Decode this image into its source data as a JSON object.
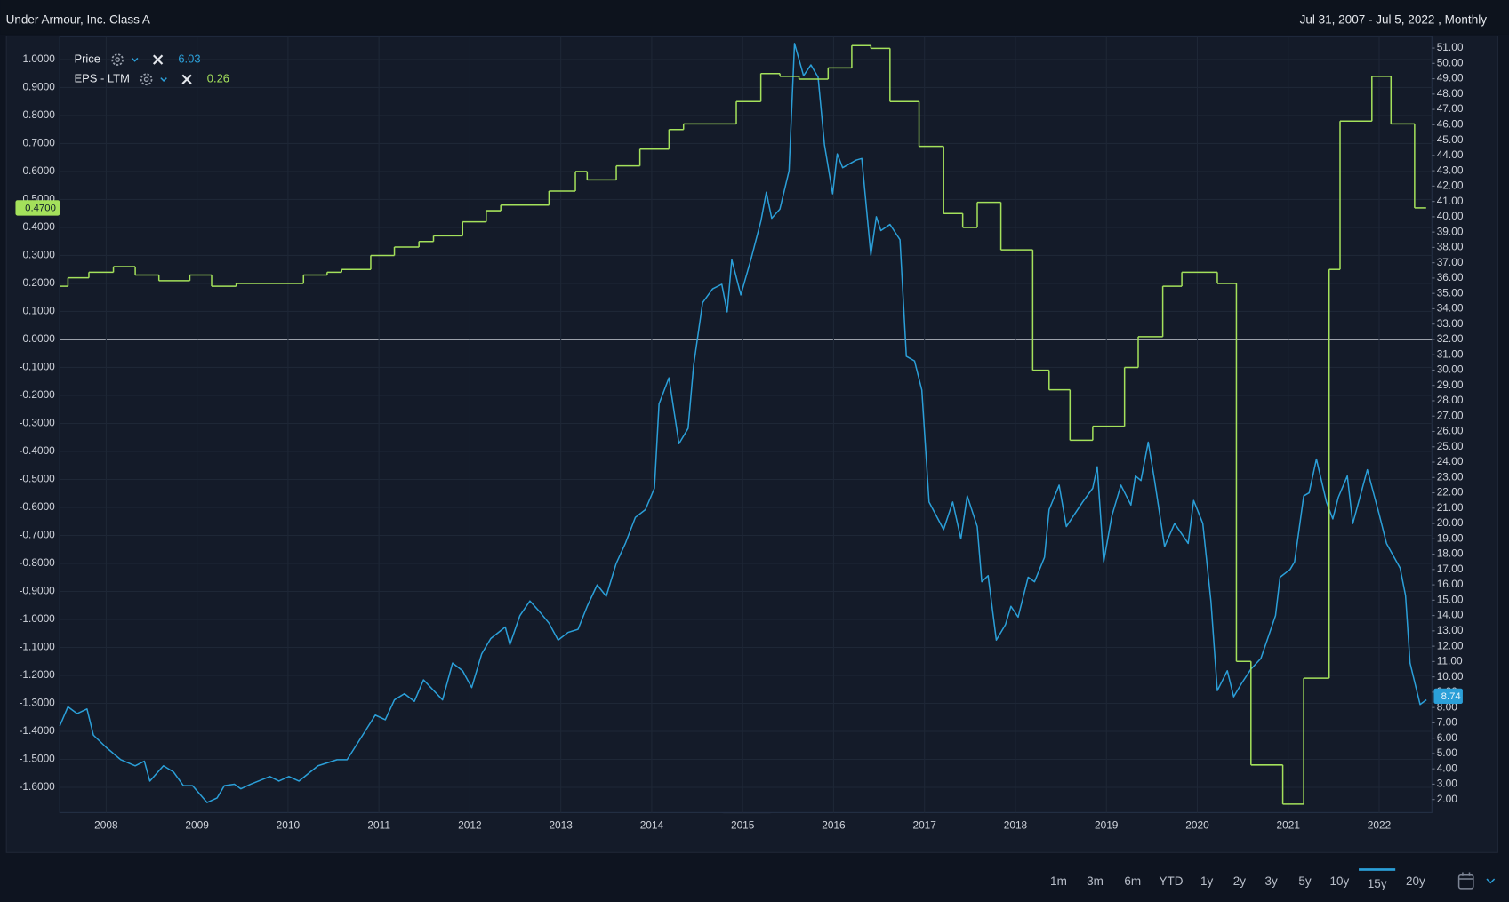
{
  "chart_data": {
    "type": "line",
    "title": "Under Armour, Inc. Class A",
    "subtitle": "Jul 31, 2007 - Jul 5, 2022 , Monthly",
    "xlim": [
      2007.49,
      2022.58
    ],
    "xticks": [
      2008,
      2009,
      2010,
      2011,
      2012,
      2013,
      2014,
      2015,
      2016,
      2017,
      2018,
      2019,
      2020,
      2021,
      2022
    ],
    "ylim": [
      -1.69,
      1.082
    ],
    "yticks": [
      {
        "value": 1,
        "label": "1.0000"
      },
      {
        "value": 0.9,
        "label": "0.9000"
      },
      {
        "value": 0.8,
        "label": "0.8000"
      },
      {
        "value": 0.7,
        "label": "0.7000"
      },
      {
        "value": 0.6,
        "label": "0.6000"
      },
      {
        "value": 0.5,
        "label": "0.5000"
      },
      {
        "value": 0.4,
        "label": "0.4000"
      },
      {
        "value": 0.3,
        "label": "0.3000"
      },
      {
        "value": 0.2,
        "label": "0.2000"
      },
      {
        "value": 0.1,
        "label": "0.1000"
      },
      {
        "value": 0,
        "label": "0.0000"
      },
      {
        "value": -0.1,
        "label": "-0.1000"
      },
      {
        "value": -0.2,
        "label": "-0.2000"
      },
      {
        "value": -0.3,
        "label": "-0.3000"
      },
      {
        "value": -0.4,
        "label": "-0.4000"
      },
      {
        "value": -0.5,
        "label": "-0.5000"
      },
      {
        "value": -0.6,
        "label": "-0.6000"
      },
      {
        "value": -0.7,
        "label": "-0.7000"
      },
      {
        "value": -0.8,
        "label": "-0.8000"
      },
      {
        "value": -0.9,
        "label": "-0.9000"
      },
      {
        "value": -1,
        "label": "-1.0000"
      },
      {
        "value": -1.1,
        "label": "-1.1000"
      },
      {
        "value": -1.2,
        "label": "-1.2000"
      },
      {
        "value": -1.3,
        "label": "-1.3000"
      },
      {
        "value": -1.4,
        "label": "-1.4000"
      },
      {
        "value": -1.5,
        "label": "-1.5000"
      },
      {
        "value": -1.6,
        "label": "-1.6000"
      }
    ],
    "y2lim": [
      1.15,
      51.75
    ],
    "y2ticks": [
      {
        "value": 2,
        "label": "2.00"
      },
      {
        "value": 3,
        "label": "3.00"
      },
      {
        "value": 4,
        "label": "4.00"
      },
      {
        "value": 5,
        "label": "5.00"
      },
      {
        "value": 6,
        "label": "6.00"
      },
      {
        "value": 7,
        "label": "7.00"
      },
      {
        "value": 8,
        "label": "8.00"
      },
      {
        "value": 9,
        "label": "9.00"
      },
      {
        "value": 10,
        "label": "10.00"
      },
      {
        "value": 11,
        "label": "11.00"
      },
      {
        "value": 12,
        "label": "12.00"
      },
      {
        "value": 13,
        "label": "13.00"
      },
      {
        "value": 14,
        "label": "14.00"
      },
      {
        "value": 15,
        "label": "15.00"
      },
      {
        "value": 16,
        "label": "16.00"
      },
      {
        "value": 17,
        "label": "17.00"
      },
      {
        "value": 18,
        "label": "18.00"
      },
      {
        "value": 19,
        "label": "19.00"
      },
      {
        "value": 20,
        "label": "20.00"
      },
      {
        "value": 21,
        "label": "21.00"
      },
      {
        "value": 22,
        "label": "22.00"
      },
      {
        "value": 23,
        "label": "23.00"
      },
      {
        "value": 24,
        "label": "24.00"
      },
      {
        "value": 25,
        "label": "25.00"
      },
      {
        "value": 26,
        "label": "26.00"
      },
      {
        "value": 27,
        "label": "27.00"
      },
      {
        "value": 28,
        "label": "28.00"
      },
      {
        "value": 29,
        "label": "29.00"
      },
      {
        "value": 30,
        "label": "30.00"
      },
      {
        "value": 31,
        "label": "31.00"
      },
      {
        "value": 32,
        "label": "32.00"
      },
      {
        "value": 33,
        "label": "33.00"
      },
      {
        "value": 34,
        "label": "34.00"
      },
      {
        "value": 35,
        "label": "35.00"
      },
      {
        "value": 36,
        "label": "36.00"
      },
      {
        "value": 37,
        "label": "37.00"
      },
      {
        "value": 38,
        "label": "38.00"
      },
      {
        "value": 39,
        "label": "39.00"
      },
      {
        "value": 40,
        "label": "40.00"
      },
      {
        "value": 41,
        "label": "41.00"
      },
      {
        "value": 42,
        "label": "42.00"
      },
      {
        "value": 43,
        "label": "43.00"
      },
      {
        "value": 44,
        "label": "44.00"
      },
      {
        "value": 45,
        "label": "45.00"
      },
      {
        "value": 46,
        "label": "46.00"
      },
      {
        "value": 47,
        "label": "47.00"
      },
      {
        "value": 48,
        "label": "48.00"
      },
      {
        "value": 49,
        "label": "49.00"
      },
      {
        "value": 50,
        "label": "50.00"
      },
      {
        "value": 51,
        "label": "51.00"
      }
    ],
    "grid": true,
    "zero_line": true,
    "series": [
      {
        "name": "Price",
        "color": "#2b9fd8",
        "axis": "y2",
        "legend_value": 6.03,
        "last_label": 8.74,
        "x": [
          2007.49,
          2007.58,
          2007.68,
          2007.79,
          2007.86,
          2008.0,
          2008.16,
          2008.32,
          2008.42,
          2008.48,
          2008.63,
          2008.74,
          2008.85,
          2008.95,
          2009.11,
          2009.22,
          2009.3,
          2009.41,
          2009.48,
          2009.59,
          2009.8,
          2009.9,
          2010.01,
          2010.12,
          2010.33,
          2010.54,
          2010.65,
          2010.8,
          2010.96,
          2011.07,
          2011.17,
          2011.28,
          2011.39,
          2011.49,
          2011.7,
          2011.81,
          2011.92,
          2012.02,
          2012.13,
          2012.23,
          2012.39,
          2012.44,
          2012.55,
          2012.66,
          2012.76,
          2012.87,
          2012.97,
          2013.08,
          2013.19,
          2013.29,
          2013.4,
          2013.5,
          2013.61,
          2013.71,
          2013.82,
          2013.93,
          2014.03,
          2014.08,
          2014.19,
          2014.3,
          2014.4,
          2014.46,
          2014.56,
          2014.67,
          2014.77,
          2014.83,
          2014.88,
          2014.98,
          2015.09,
          2015.2,
          2015.26,
          2015.32,
          2015.41,
          2015.51,
          2015.57,
          2015.67,
          2015.75,
          2015.83,
          2015.9,
          2015.99,
          2016.04,
          2016.1,
          2016.25,
          2016.31,
          2016.41,
          2016.47,
          2016.52,
          2016.62,
          2016.73,
          2016.8,
          2016.89,
          2016.97,
          2017.05,
          2017.21,
          2017.31,
          2017.4,
          2017.47,
          2017.58,
          2017.63,
          2017.7,
          2017.79,
          2017.89,
          2017.95,
          2018.03,
          2018.14,
          2018.21,
          2018.32,
          2018.37,
          2018.48,
          2018.56,
          2018.74,
          2018.85,
          2018.9,
          2018.97,
          2019.06,
          2019.16,
          2019.27,
          2019.32,
          2019.38,
          2019.46,
          2019.53,
          2019.64,
          2019.75,
          2019.9,
          2019.96,
          2020.06,
          2020.15,
          2020.22,
          2020.33,
          2020.4,
          2020.49,
          2020.59,
          2020.7,
          2020.86,
          2020.91,
          2021.02,
          2021.07,
          2021.17,
          2021.23,
          2021.31,
          2021.42,
          2021.49,
          2021.55,
          2021.65,
          2021.71,
          2021.87,
          2022.0,
          2022.08,
          2022.23,
          2022.29,
          2022.34,
          2022.45,
          2022.52
        ],
        "values": [
          6.8,
          8.05,
          7.6,
          7.9,
          6.2,
          5.4,
          4.6,
          4.2,
          4.5,
          3.2,
          4.2,
          3.8,
          2.9,
          2.9,
          1.8,
          2.1,
          2.9,
          3.0,
          2.7,
          3.0,
          3.5,
          3.2,
          3.5,
          3.2,
          4.2,
          4.6,
          4.6,
          6.0,
          7.5,
          7.2,
          8.5,
          8.9,
          8.4,
          9.8,
          8.5,
          10.9,
          10.4,
          9.3,
          11.5,
          12.5,
          13.25,
          12.1,
          14.0,
          14.95,
          14.3,
          13.5,
          12.4,
          12.9,
          13.1,
          14.6,
          16.0,
          15.25,
          17.4,
          18.7,
          20.4,
          20.9,
          22.3,
          27.8,
          29.5,
          25.2,
          26.2,
          30.3,
          34.4,
          35.3,
          35.6,
          33.8,
          37.2,
          34.9,
          37.2,
          39.7,
          41.6,
          39.9,
          40.5,
          43.0,
          51.3,
          49.2,
          49.9,
          49.1,
          44.7,
          41.5,
          44.1,
          43.2,
          43.7,
          43.8,
          37.5,
          40.0,
          39.1,
          39.5,
          38.5,
          30.9,
          30.6,
          28.7,
          21.4,
          19.6,
          21.4,
          19.0,
          21.8,
          19.8,
          16.2,
          16.6,
          12.4,
          13.4,
          14.6,
          13.9,
          16.5,
          16.2,
          17.8,
          20.9,
          22.5,
          19.8,
          21.4,
          22.3,
          23.7,
          17.5,
          20.5,
          22.5,
          21.2,
          23.1,
          22.8,
          25.3,
          22.8,
          18.5,
          20.0,
          18.7,
          21.5,
          20.0,
          14.9,
          9.1,
          10.4,
          8.7,
          9.6,
          10.5,
          11.2,
          14.0,
          16.5,
          17.0,
          17.5,
          21.8,
          22.0,
          24.2,
          21.4,
          20.3,
          21.7,
          23.1,
          20.0,
          23.5,
          20.6,
          18.7,
          17.1,
          15.3,
          10.9,
          8.2,
          8.5
        ]
      },
      {
        "name": "EPS - LTM",
        "color": "#a4e15b",
        "step": true,
        "legend_value": 0.26,
        "last_label": {
          "value": 0.47,
          "label": "0.4700"
        },
        "x": [
          2007.49,
          2007.58,
          2007.81,
          2008.08,
          2008.32,
          2008.58,
          2008.92,
          2009.16,
          2009.43,
          2010.17,
          2010.43,
          2010.59,
          2010.91,
          2011.17,
          2011.44,
          2011.6,
          2011.92,
          2012.18,
          2012.34,
          2012.87,
          2013.16,
          2013.29,
          2013.61,
          2013.87,
          2014.19,
          2014.35,
          2014.93,
          2015.2,
          2015.41,
          2015.62,
          2015.94,
          2016.2,
          2016.41,
          2016.62,
          2016.94,
          2017.21,
          2017.42,
          2017.58,
          2017.84,
          2018.19,
          2018.37,
          2018.6,
          2018.85,
          2019.2,
          2019.35,
          2019.62,
          2019.83,
          2020.22,
          2020.43,
          2020.59,
          2020.94,
          2021.17,
          2021.45,
          2021.57,
          2021.92,
          2022.13,
          2022.39
        ],
        "values": [
          0.19,
          0.22,
          0.24,
          0.26,
          0.23,
          0.21,
          0.23,
          0.19,
          0.2,
          0.23,
          0.24,
          0.25,
          0.3,
          0.33,
          0.35,
          0.37,
          0.42,
          0.46,
          0.48,
          0.53,
          0.6,
          0.57,
          0.62,
          0.68,
          0.75,
          0.77,
          0.85,
          0.95,
          0.94,
          0.93,
          0.97,
          1.05,
          1.04,
          0.85,
          0.69,
          0.45,
          0.4,
          0.49,
          0.32,
          -0.11,
          -0.18,
          -0.36,
          -0.31,
          -0.1,
          0.01,
          0.19,
          0.24,
          0.2,
          -1.15,
          -1.52,
          -1.66,
          -1.21,
          0.25,
          0.78,
          0.94,
          0.77,
          0.47
        ]
      }
    ],
    "range_buttons": [
      "1m",
      "3m",
      "6m",
      "YTD",
      "1y",
      "2y",
      "3y",
      "5y",
      "10y",
      "15y",
      "20y"
    ],
    "active_range": "15y"
  }
}
